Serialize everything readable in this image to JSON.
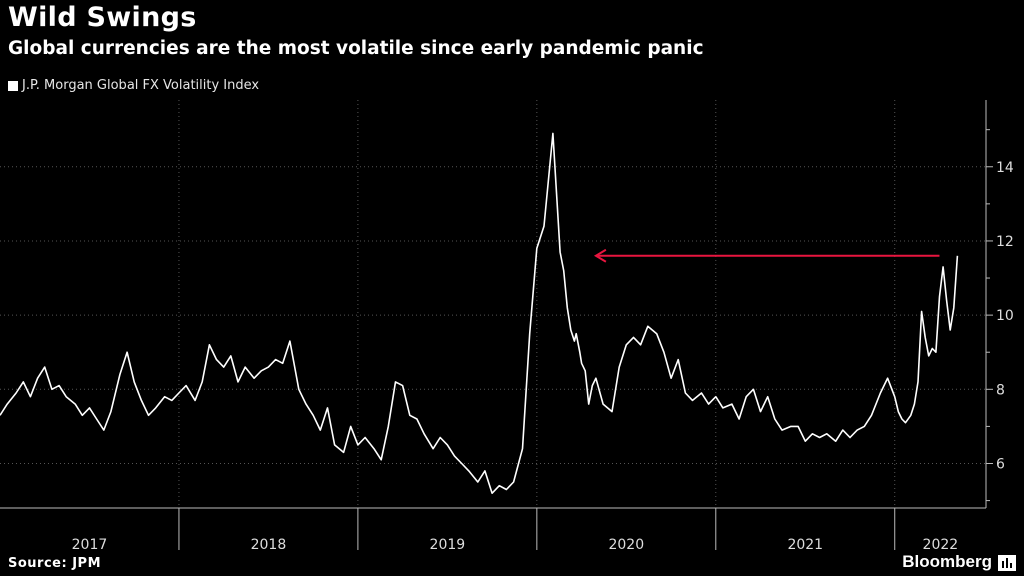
{
  "title": "Wild Swings",
  "subtitle": "Global currencies are the most volatile since early pandemic panic",
  "source": "Source: JPM",
  "brand": "Bloomberg",
  "chart_data": {
    "type": "line",
    "title": "Wild Swings",
    "subtitle": "Global currencies are the most volatile since early pandemic panic",
    "legend": [
      "J.P. Morgan Global FX Volatility Index"
    ],
    "legend_position": "top-left",
    "x_labels": [
      "2017",
      "2018",
      "2019",
      "2020",
      "2021",
      "2022"
    ],
    "y_ticks": [
      6,
      8,
      10,
      12,
      14
    ],
    "ylim": [
      4.8,
      15.8
    ],
    "xlim": [
      2017.0,
      2022.51
    ],
    "y_axis_side": "right",
    "grid": "dotted",
    "series": [
      {
        "name": "J.P. Morgan Global FX Volatility Index",
        "color": "#ffffff",
        "x": [
          2017.0,
          2017.04,
          2017.09,
          2017.13,
          2017.17,
          2017.21,
          2017.25,
          2017.29,
          2017.33,
          2017.37,
          2017.42,
          2017.46,
          2017.5,
          2017.54,
          2017.58,
          2017.62,
          2017.67,
          2017.71,
          2017.75,
          2017.79,
          2017.83,
          2017.87,
          2017.92,
          2017.96,
          2018.0,
          2018.04,
          2018.09,
          2018.13,
          2018.17,
          2018.21,
          2018.25,
          2018.29,
          2018.33,
          2018.37,
          2018.42,
          2018.46,
          2018.5,
          2018.54,
          2018.58,
          2018.62,
          2018.67,
          2018.71,
          2018.75,
          2018.79,
          2018.83,
          2018.87,
          2018.92,
          2018.96,
          2019.0,
          2019.04,
          2019.09,
          2019.13,
          2019.17,
          2019.21,
          2019.25,
          2019.29,
          2019.33,
          2019.37,
          2019.42,
          2019.46,
          2019.5,
          2019.54,
          2019.58,
          2019.62,
          2019.67,
          2019.71,
          2019.75,
          2019.79,
          2019.83,
          2019.87,
          2019.92,
          2019.96,
          2020.0,
          2020.04,
          2020.09,
          2020.13,
          2020.15,
          2020.17,
          2020.19,
          2020.21,
          2020.22,
          2020.24,
          2020.25,
          2020.27,
          2020.29,
          2020.31,
          2020.33,
          2020.37,
          2020.42,
          2020.46,
          2020.5,
          2020.54,
          2020.58,
          2020.62,
          2020.67,
          2020.71,
          2020.75,
          2020.79,
          2020.83,
          2020.87,
          2020.92,
          2020.96,
          2021.0,
          2021.04,
          2021.09,
          2021.13,
          2021.17,
          2021.21,
          2021.25,
          2021.29,
          2021.33,
          2021.37,
          2021.42,
          2021.46,
          2021.5,
          2021.54,
          2021.58,
          2021.62,
          2021.67,
          2021.71,
          2021.75,
          2021.79,
          2021.83,
          2021.87,
          2021.92,
          2021.96,
          2022.0,
          2022.02,
          2022.04,
          2022.06,
          2022.09,
          2022.11,
          2022.13,
          2022.15,
          2022.17,
          2022.19,
          2022.21,
          2022.23,
          2022.25,
          2022.27,
          2022.29,
          2022.31,
          2022.33,
          2022.35
        ],
        "values": [
          7.3,
          7.6,
          7.9,
          8.2,
          7.8,
          8.3,
          8.6,
          8.0,
          8.1,
          7.8,
          7.6,
          7.3,
          7.5,
          7.2,
          6.9,
          7.4,
          8.4,
          9.0,
          8.2,
          7.7,
          7.3,
          7.5,
          7.8,
          7.7,
          7.9,
          8.1,
          7.7,
          8.2,
          9.2,
          8.8,
          8.6,
          8.9,
          8.2,
          8.6,
          8.3,
          8.5,
          8.6,
          8.8,
          8.7,
          9.3,
          8.0,
          7.6,
          7.3,
          6.9,
          7.5,
          6.5,
          6.3,
          7.0,
          6.5,
          6.7,
          6.4,
          6.1,
          7.0,
          8.2,
          8.1,
          7.3,
          7.2,
          6.8,
          6.4,
          6.7,
          6.5,
          6.2,
          6.0,
          5.8,
          5.5,
          5.8,
          5.2,
          5.4,
          5.3,
          5.5,
          6.4,
          9.5,
          11.8,
          12.4,
          14.9,
          11.7,
          11.2,
          10.2,
          9.6,
          9.3,
          9.5,
          9.0,
          8.7,
          8.5,
          7.6,
          8.1,
          8.3,
          7.6,
          7.4,
          8.6,
          9.2,
          9.4,
          9.2,
          9.7,
          9.5,
          9.0,
          8.3,
          8.8,
          7.9,
          7.7,
          7.9,
          7.6,
          7.8,
          7.5,
          7.6,
          7.2,
          7.8,
          8.0,
          7.4,
          7.8,
          7.2,
          6.9,
          7.0,
          7.0,
          6.6,
          6.8,
          6.7,
          6.8,
          6.6,
          6.9,
          6.7,
          6.9,
          7.0,
          7.3,
          7.9,
          8.3,
          7.8,
          7.4,
          7.2,
          7.1,
          7.3,
          7.6,
          8.2,
          10.1,
          9.4,
          8.9,
          9.1,
          9.0,
          10.5,
          11.3,
          10.4,
          9.6,
          10.2,
          11.6
        ]
      }
    ],
    "annotation": {
      "type": "arrow",
      "color": "#e8153f",
      "y": 11.6,
      "x_from": 2022.25,
      "x_to": 2020.33
    }
  }
}
